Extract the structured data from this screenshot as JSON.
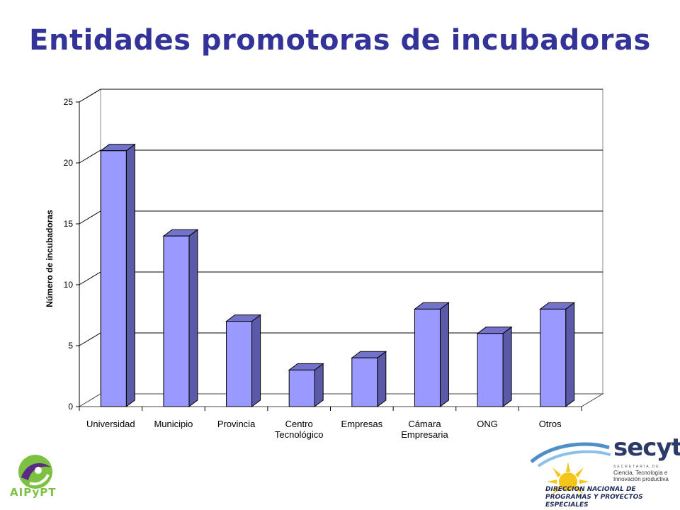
{
  "title": "Entidades promotoras de incubadoras",
  "chart_data": {
    "type": "bar",
    "categories": [
      [
        "Universidad"
      ],
      [
        "Municipio"
      ],
      [
        "Provincia"
      ],
      [
        "Centro",
        "Tecnológico"
      ],
      [
        "Empresas"
      ],
      [
        "Cámara",
        "Empresaria"
      ],
      [
        "ONG"
      ],
      [
        "Otros"
      ]
    ],
    "values": [
      21,
      14,
      7,
      3,
      4,
      8,
      6,
      8
    ],
    "ylabel": "Número de incubadoras",
    "ylim": [
      0,
      25
    ],
    "yticks": [
      0,
      5,
      10,
      15,
      20,
      25
    ],
    "grid": true,
    "bar_color": "#9999ff",
    "bar_side_color": "#5a5aa8",
    "bar_top_color": "#7373cc"
  },
  "logos": {
    "left": {
      "name": "AIPyPT",
      "text": "AIPyPT",
      "color": "#7cc142"
    },
    "right": {
      "word": "secyt",
      "tagline_small": "SECRETARÍA DE",
      "tagline": "Ciencia, Tecnología e Innovación productiva",
      "footer": [
        "DIRECCION NACIONAL DE",
        "PROGRAMAS Y PROYECTOS ESPECIALES"
      ]
    }
  }
}
